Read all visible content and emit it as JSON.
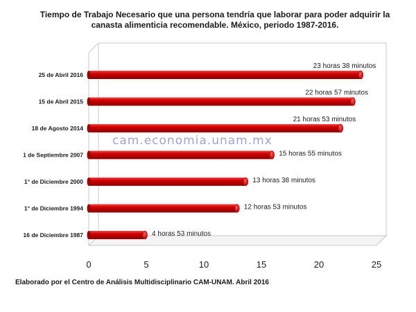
{
  "chart_data": {
    "type": "bar",
    "orientation": "horizontal",
    "title": "Tiempo de Trabajo Necesario que una persona tendría que laborar para poder adquirir la canasta alimenticia recomendable. México, periodo 1987-2016.",
    "categories": [
      "25 de Abril 2016",
      "15 de Abril 2015",
      "18 de Agosto 2014",
      "1 de Septiembre 2007",
      "1° de Diciembre 2000",
      "1° de Diciembre 1994",
      "16 de Diciembre 1987"
    ],
    "values": [
      23.633,
      22.95,
      21.883,
      15.917,
      13.633,
      12.883,
      4.883
    ],
    "data_labels": [
      "23 horas 38 minutos",
      "22  horas 57 minutos",
      "21 horas 53 minutos",
      "15 horas 55 minutos",
      "13 horas 38 minutos",
      "12 horas 53 minutos",
      "4 horas 53 minutos"
    ],
    "xlim": [
      0,
      25
    ],
    "xticks": [
      0,
      5,
      10,
      15,
      20,
      25
    ],
    "grid": false,
    "bar_color": "#cc0000",
    "watermark": "cam.economia.unam.mx",
    "source": "Elaborado por el Centro de Análisis Multidisciplinario CAM-UNAM. Abril 2016"
  }
}
